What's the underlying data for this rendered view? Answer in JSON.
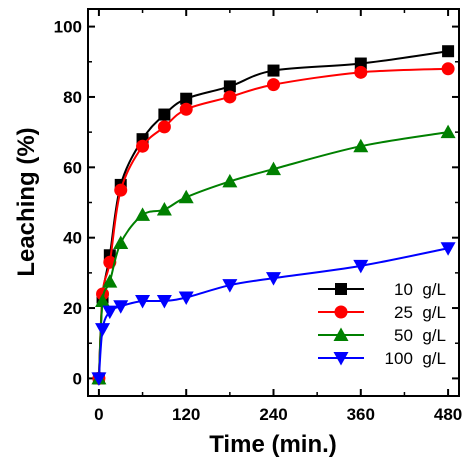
{
  "chart_data": {
    "type": "line",
    "xlabel": "Time (min.)",
    "ylabel": "Leaching (%)",
    "xlim": [
      -15,
      495
    ],
    "ylim": [
      -5,
      105
    ],
    "xticks": [
      0,
      120,
      240,
      360,
      480
    ],
    "yticks": [
      0,
      20,
      40,
      60,
      80,
      100
    ],
    "grid": false,
    "legend_position": "bottom-right",
    "series": [
      {
        "name": "10  g/L",
        "color": "#000000",
        "marker": "square",
        "x": [
          0,
          5,
          15,
          30,
          60,
          90,
          120,
          180,
          240,
          360,
          480
        ],
        "y": [
          0,
          23,
          35,
          55,
          68,
          75,
          79.5,
          83,
          87.5,
          89.5,
          93
        ]
      },
      {
        "name": "25  g/L",
        "color": "#ff0000",
        "marker": "circle",
        "x": [
          0,
          5,
          15,
          30,
          60,
          90,
          120,
          180,
          240,
          360,
          480
        ],
        "y": [
          0,
          24,
          33,
          53.5,
          66,
          71.5,
          76.5,
          80,
          83.5,
          87,
          88
        ]
      },
      {
        "name": "50  g/L",
        "color": "#008000",
        "marker": "triangle-up",
        "x": [
          0,
          5,
          15,
          30,
          60,
          90,
          120,
          180,
          240,
          360,
          480
        ],
        "y": [
          0,
          22,
          27.5,
          38.5,
          46.5,
          48,
          51.5,
          56,
          59.5,
          66,
          70
        ]
      },
      {
        "name": "100  g/L",
        "color": "#0000ff",
        "marker": "triangle-down",
        "x": [
          0,
          5,
          15,
          30,
          60,
          90,
          120,
          180,
          240,
          360,
          480
        ],
        "y": [
          0,
          14,
          19,
          20.5,
          22,
          22,
          23,
          26.5,
          28.5,
          32,
          37
        ]
      }
    ]
  }
}
